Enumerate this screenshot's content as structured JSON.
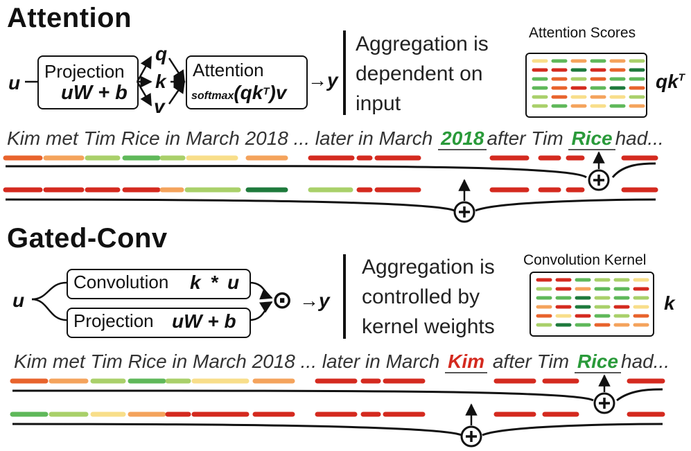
{
  "attention": {
    "title": "Attention",
    "input": "u",
    "proj_label": "Projection",
    "proj_formula": "uW + b",
    "qkv": [
      "q",
      "k",
      "v"
    ],
    "attn_label": "Attention",
    "attn_prefix": "softmax",
    "attn_formula": "(qk",
    "attn_sup": "T",
    "attn_suffix": ")v",
    "arrow_out": "→y",
    "description": [
      "Aggregation is",
      "dependent on",
      "input"
    ],
    "matrix_caption": "Attention Scores",
    "matrix_symbol": "qk",
    "matrix_sup": "T",
    "sentence_pre": "Kim met Tim Rice in March 2018 ... later in March",
    "sentence_h1": "2018",
    "sentence_mid": "after Tim",
    "sentence_h2": "Rice",
    "sentence_post": "had...",
    "sum_symbol": "+"
  },
  "gated": {
    "title": "Gated-Conv",
    "input": "u",
    "conv_label": "Convolution",
    "conv_formula": "k * u",
    "proj_label": "Projection",
    "proj_formula": "uW + b",
    "gate_symbol": "⊙",
    "arrow_out": "→y",
    "description": [
      "Aggregation is",
      "controlled by",
      "kernel weights"
    ],
    "matrix_caption": "Convolution Kernel",
    "matrix_symbol": "k",
    "sentence_pre": "Kim met Tim Rice in March 2018 ... later in March",
    "sentence_h1": "Kim",
    "sentence_mid": "after Tim",
    "sentence_h2": "Rice",
    "sentence_post": "had...",
    "sum_symbol": "+"
  },
  "colors": {
    "red": "#d42a1f",
    "orange_red": "#e8632c",
    "orange": "#f4a35c",
    "yellow": "#f8de8a",
    "light_green": "#a9d06a",
    "green": "#5fb85a",
    "dark_green": "#1e7a3c",
    "highlight_green": "#2a9a3a",
    "highlight_red": "#d42a1f"
  }
}
